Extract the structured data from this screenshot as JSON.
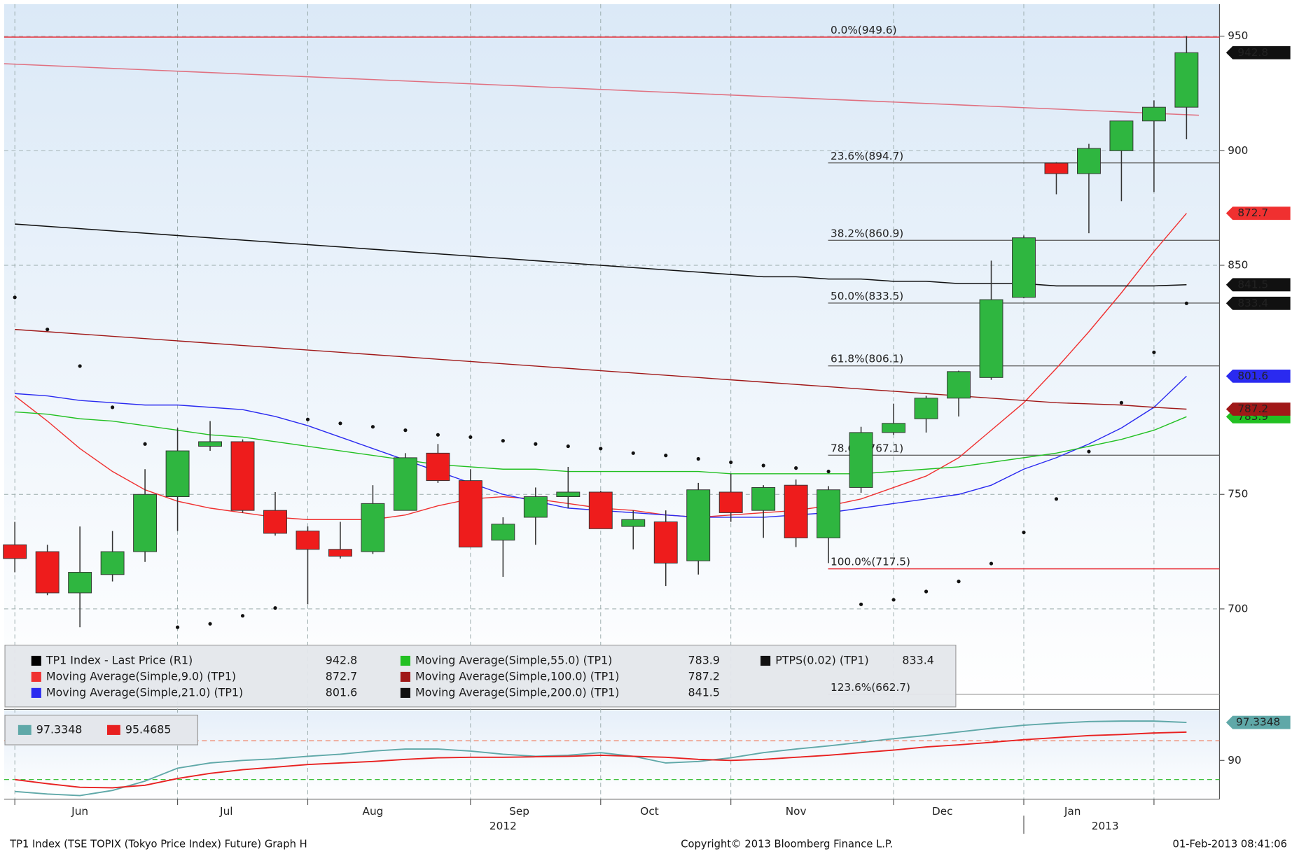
{
  "chart_data": {
    "type": "candlestick",
    "ylim": [
      656.5,
      964
    ],
    "yticks": [
      700,
      750,
      850,
      900,
      950
    ],
    "months": [
      {
        "label": "Jun",
        "weeks": 5
      },
      {
        "label": "Jul",
        "weeks": 4
      },
      {
        "label": "Aug",
        "weeks": 5
      },
      {
        "label": "Sep",
        "weeks": 4
      },
      {
        "label": "Oct",
        "weeks": 4
      },
      {
        "label": "Nov",
        "weeks": 5
      },
      {
        "label": "Dec",
        "weeks": 4
      },
      {
        "label": "Jan",
        "weeks": 4
      },
      {
        "label": null,
        "weeks": 2
      }
    ],
    "years": [
      {
        "label": "2012",
        "months": 7
      },
      {
        "label": "2013",
        "months": 2
      }
    ],
    "price": {
      "name": "TP1 Index - Last Price (R1)",
      "color": "#000000",
      "up_color": "#2fb640",
      "down_color": "#ee1c1c",
      "open": [
        728,
        725,
        707,
        715,
        725,
        749,
        771,
        773,
        743,
        734,
        726,
        725,
        743,
        768,
        756,
        730,
        740,
        749,
        751,
        736,
        738,
        721,
        751,
        743,
        754,
        731,
        753,
        777,
        783,
        792,
        801,
        836,
        894.6,
        890,
        900,
        913,
        919
      ],
      "high": [
        738,
        728,
        736,
        734,
        761,
        779,
        782,
        774,
        751,
        736,
        738,
        754,
        768,
        772,
        761,
        740,
        753,
        762,
        751.5,
        743,
        743,
        755,
        759,
        754,
        756.5,
        753.6,
        779.5,
        789.6,
        793,
        804,
        852,
        863,
        895,
        903,
        913,
        922,
        950
      ],
      "low": [
        716,
        706,
        692,
        712,
        720.5,
        734,
        769,
        742,
        732,
        702,
        722,
        724,
        743,
        755,
        727,
        714,
        728,
        744,
        735,
        726,
        710,
        715,
        738,
        731,
        727,
        720,
        750.7,
        776,
        777,
        784,
        800,
        835.6,
        881,
        864,
        878,
        882,
        905
      ],
      "close": [
        722,
        707,
        716,
        725,
        750,
        769,
        773,
        743,
        733,
        726,
        723,
        746,
        766,
        756,
        727,
        737,
        749,
        751,
        735,
        739,
        720,
        752,
        742,
        753,
        731,
        752,
        777,
        781,
        792,
        803.6,
        835,
        862,
        890,
        901,
        913,
        919,
        942.8
      ]
    },
    "studies": [
      {
        "name": "Moving Average(Simple,9.0) (TP1)",
        "color": "#f03030",
        "values": [
          793,
          782,
          770,
          760,
          752,
          747,
          744,
          742,
          740,
          739,
          739,
          739,
          741,
          745,
          748,
          749,
          748,
          746,
          744,
          743,
          741,
          740,
          741,
          742,
          743,
          745,
          748,
          753,
          758,
          766,
          778,
          790,
          805,
          821,
          838,
          856,
          872.7
        ]
      },
      {
        "name": "Moving Average(Simple,21.0) (TP1)",
        "color": "#2a2af0",
        "values": [
          794,
          793,
          791,
          790,
          789,
          789,
          788,
          787,
          784,
          780,
          775,
          770,
          765,
          760,
          755,
          750,
          747,
          744,
          743,
          742,
          741,
          740,
          740,
          740,
          741,
          742,
          744,
          746,
          748,
          750,
          754,
          761,
          766,
          772,
          779,
          788,
          801.6
        ]
      },
      {
        "name": "Moving Average(Simple,55.0) (TP1)",
        "color": "#22c022",
        "values": [
          786,
          785,
          783,
          782,
          780,
          778,
          776,
          775,
          773,
          771,
          769,
          767,
          765,
          763,
          762,
          761,
          761,
          760,
          760,
          760,
          760,
          760,
          759,
          759,
          759,
          759,
          759,
          760,
          761,
          762,
          764,
          766,
          768,
          771,
          774,
          778,
          783.9
        ]
      },
      {
        "name": "Moving Average(Simple,100.0) (TP1)",
        "color": "#a01818",
        "values": [
          822,
          821,
          820,
          819,
          818,
          817,
          816,
          815,
          814,
          813,
          812,
          811,
          810,
          809,
          808,
          807,
          806,
          805,
          804,
          803,
          802,
          801,
          800,
          799,
          798,
          797,
          796,
          795,
          794,
          793,
          792,
          791,
          790,
          789.5,
          789,
          788,
          787.2
        ]
      },
      {
        "name": "Moving Average(Simple,200.0) (TP1)",
        "color": "#111111",
        "values": [
          868,
          867,
          866,
          865,
          864,
          863,
          862,
          861,
          860,
          859,
          858,
          857,
          856,
          855,
          854,
          853,
          852,
          851,
          850,
          849,
          848,
          847,
          846,
          845,
          845,
          844,
          844,
          843,
          843,
          842,
          842,
          842,
          841,
          841,
          841,
          841,
          841.5
        ]
      }
    ],
    "sar": {
      "name": "PTPS(0.02) (TP1)",
      "color": "#111111",
      "values": [
        836,
        822,
        806,
        788,
        772,
        692,
        693.5,
        697,
        700.4,
        782.7,
        781,
        779.5,
        778,
        776,
        775,
        773.4,
        772,
        771,
        770,
        768,
        767,
        765.5,
        764,
        762.6,
        761.5,
        760,
        702,
        704,
        707.6,
        712,
        719.8,
        733.4,
        748,
        768.7,
        790,
        812,
        833.4
      ]
    },
    "trendline": {
      "color": "#e07080",
      "values": [
        938,
        915.5
      ]
    },
    "fib": [
      {
        "label": "0.0%(949.6)",
        "value": 949.6,
        "color": "#e8303a"
      },
      {
        "label": "23.6%(894.7)",
        "value": 894.7,
        "color": "#666666"
      },
      {
        "label": "38.2%(860.9)",
        "value": 860.9,
        "color": "#666666"
      },
      {
        "label": "50.0%(833.5)",
        "value": 833.5,
        "color": "#666666"
      },
      {
        "label": "61.8%(806.1)",
        "value": 806.1,
        "color": "#666666"
      },
      {
        "label": "78.6%(767.1)",
        "value": 767.1,
        "color": "#666666"
      },
      {
        "label": "100.0%(717.5)",
        "value": 717.5,
        "color": "#e8303a"
      },
      {
        "label": "123.6%(662.7)",
        "value": 662.7,
        "color": "#aaaaaa"
      }
    ],
    "lower": {
      "ylim": [
        82.5,
        99.7
      ],
      "yticks": [
        90
      ],
      "levels": [
        {
          "value": 93.8,
          "color": "#f07050"
        },
        {
          "value": 86.3,
          "color": "#40c040"
        }
      ],
      "series": [
        {
          "color": "#5fa8a8",
          "values": [
            84.0,
            83.5,
            83.2,
            84.2,
            86.0,
            88.5,
            89.5,
            90.0,
            90.3,
            90.8,
            91.2,
            91.8,
            92.2,
            92.2,
            91.8,
            91.2,
            90.8,
            91.0,
            91.5,
            90.8,
            89.5,
            89.8,
            90.5,
            91.5,
            92.2,
            92.8,
            93.5,
            94.2,
            94.8,
            95.5,
            96.2,
            96.8,
            97.2,
            97.5,
            97.6,
            97.6,
            97.3348
          ]
        },
        {
          "color": "#e82020",
          "values": [
            86.3,
            85.5,
            84.8,
            84.7,
            85.2,
            86.5,
            87.5,
            88.2,
            88.7,
            89.2,
            89.5,
            89.8,
            90.2,
            90.5,
            90.6,
            90.6,
            90.7,
            90.8,
            91.0,
            90.8,
            90.6,
            90.2,
            90.0,
            90.2,
            90.6,
            91.0,
            91.5,
            92.0,
            92.6,
            93.0,
            93.5,
            94.0,
            94.4,
            94.8,
            95.0,
            95.3,
            95.4685
          ]
        }
      ]
    }
  },
  "footer": {
    "left": "TP1 Index (TSE TOPIX (Tokyo Price Index) Future) Graph H",
    "center": "Copyright© 2013 Bloomberg Finance L.P.",
    "right": "01-Feb-2013 08:41:06"
  }
}
